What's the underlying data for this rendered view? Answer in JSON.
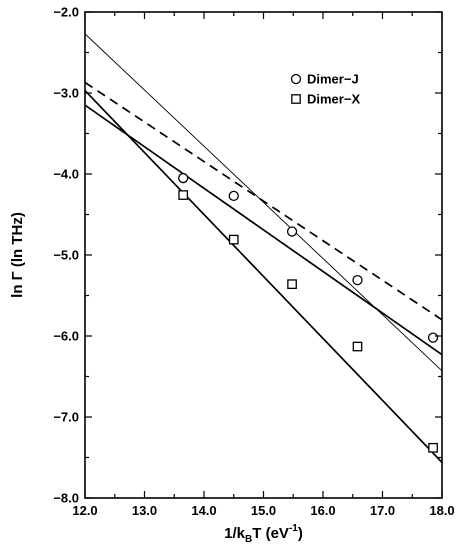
{
  "chart_data": {
    "type": "scatter",
    "xlabel": "1/k_BT (eV^-1)",
    "ylabel": "ln Γ (ln THz)",
    "xlim": [
      12.0,
      18.0
    ],
    "ylim": [
      -8.0,
      -2.0
    ],
    "x_ticks": [
      "12.0",
      "13.0",
      "14.0",
      "15.0",
      "16.0",
      "17.0",
      "18.0"
    ],
    "y_ticks": [
      "−8.0",
      "−7.0",
      "−6.0",
      "−5.0",
      "−4.0",
      "−3.0",
      "−2.0"
    ],
    "grid": false,
    "legend_position": "top-right",
    "series": [
      {
        "name": "Dimer−J",
        "marker": "circle",
        "points": [
          {
            "x": 13.65,
            "y": -4.05
          },
          {
            "x": 14.5,
            "y": -4.27
          },
          {
            "x": 15.48,
            "y": -4.71
          },
          {
            "x": 16.58,
            "y": -5.31
          },
          {
            "x": 17.85,
            "y": -6.02
          }
        ]
      },
      {
        "name": "Dimer−X",
        "marker": "square",
        "points": [
          {
            "x": 13.65,
            "y": -4.26
          },
          {
            "x": 14.5,
            "y": -4.81
          },
          {
            "x": 15.48,
            "y": -5.36
          },
          {
            "x": 16.58,
            "y": -6.13
          },
          {
            "x": 17.85,
            "y": -7.38
          }
        ]
      }
    ],
    "lines": [
      {
        "style": "solid",
        "stroke": "thick",
        "from": {
          "x": 12.0,
          "y": -3.15
        },
        "to": {
          "x": 18.0,
          "y": -6.23
        }
      },
      {
        "style": "solid",
        "stroke": "thick",
        "from": {
          "x": 12.0,
          "y": -2.97
        },
        "to": {
          "x": 18.0,
          "y": -7.56
        }
      },
      {
        "style": "dashed",
        "stroke": "thick",
        "from": {
          "x": 12.0,
          "y": -2.87
        },
        "to": {
          "x": 18.0,
          "y": -5.8
        }
      },
      {
        "style": "solid",
        "stroke": "thin",
        "from": {
          "x": 12.0,
          "y": -2.27
        },
        "to": {
          "x": 18.0,
          "y": -6.43
        }
      }
    ]
  }
}
